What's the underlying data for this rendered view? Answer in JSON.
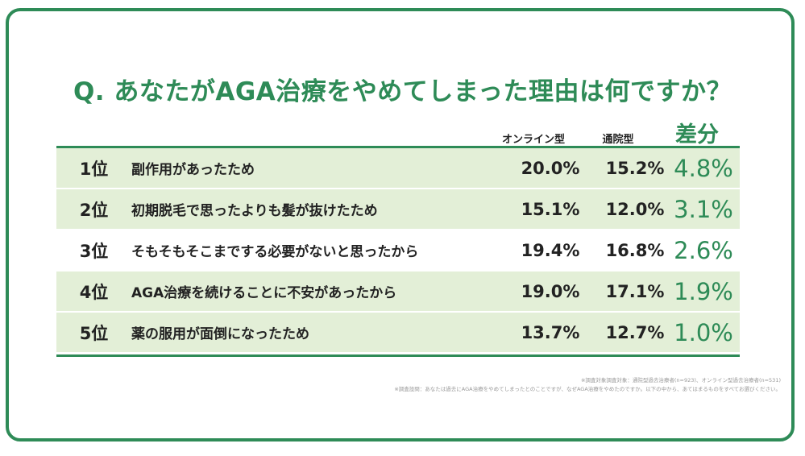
{
  "title": "Q. あなたがAGA治療をやめてしまった理由は何ですか？",
  "columns": {
    "online": "オンライン型",
    "clinic": "通院型",
    "diff": "差分"
  },
  "rows": [
    {
      "rank": "1位",
      "reason": "副作用があったため",
      "online": "20.0%",
      "clinic": "15.2%",
      "diff": "4.8%"
    },
    {
      "rank": "2位",
      "reason": "初期脱毛で思ったよりも髪が抜けたため",
      "online": "15.1%",
      "clinic": "12.0%",
      "diff": "3.1%"
    },
    {
      "rank": "3位",
      "reason": "そもそもそこまでする必要がないと思ったから",
      "online": "19.4%",
      "clinic": "16.8%",
      "diff": "2.6%"
    },
    {
      "rank": "4位",
      "reason": "AGA治療を続けることに不安があったから",
      "online": "19.0%",
      "clinic": "17.1%",
      "diff": "1.9%"
    },
    {
      "rank": "5位",
      "reason": "薬の服用が面倒になったため",
      "online": "13.7%",
      "clinic": "12.7%",
      "diff": "1.0%"
    }
  ],
  "notes": [
    "※調査対象調査対象：通院型過去治療者(n=923)、オンライン型過去治療者(n=531)",
    "※調査設問：あなたは過去にAGA治療をやめてしまったとのことですが、なぜAGA治療をやめたのですか。以下の中から、あてはまるものをすべてお選びください。"
  ],
  "colors": {
    "accent": "#2e8b57",
    "row_shade": "#e3efd7"
  },
  "chart_data": {
    "type": "table",
    "title": "Q. あなたがAGA治療をやめてしまった理由は何ですか？",
    "headers": [
      "",
      "",
      "オンライン型",
      "通院型",
      "差分"
    ],
    "categories": [
      "副作用があったため",
      "初期脱毛で思ったよりも髪が抜けたため",
      "そもそもそこまでする必要がないと思ったから",
      "AGA治療を続けることに不安があったから",
      "薬の服用が面倒になったため"
    ],
    "series": [
      {
        "name": "オンライン型",
        "values": [
          20.0,
          15.1,
          19.4,
          19.0,
          13.7
        ]
      },
      {
        "name": "通院型",
        "values": [
          15.2,
          12.0,
          16.8,
          17.1,
          12.7
        ]
      },
      {
        "name": "差分",
        "values": [
          4.8,
          3.1,
          2.6,
          1.9,
          1.0
        ]
      }
    ]
  }
}
